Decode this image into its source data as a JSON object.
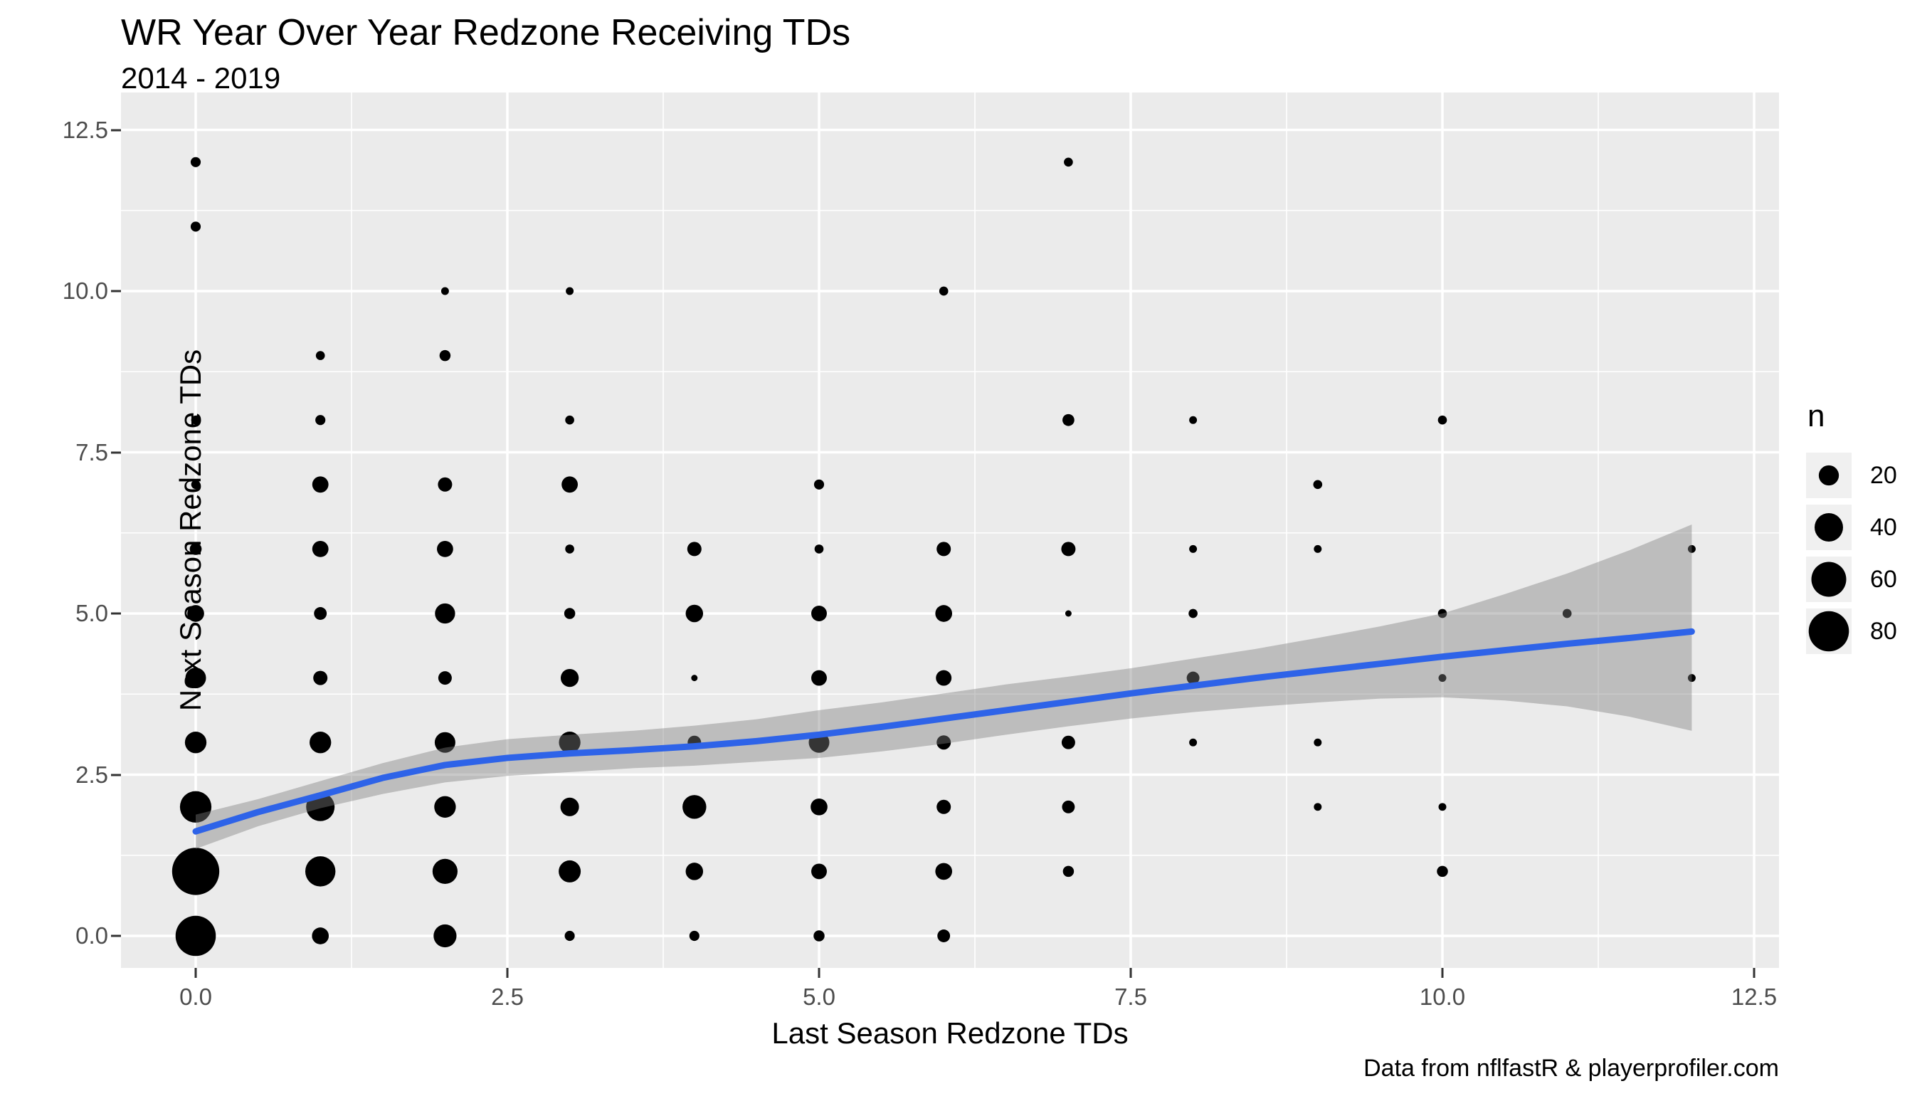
{
  "title": "WR Year Over Year Redzone Receiving TDs",
  "subtitle": "2014 - 2019",
  "caption": "Data from nflfastR & playerprofiler.com",
  "chart_data": {
    "type": "scatter",
    "subtype": "bubble-with-loess-smooth",
    "title": "WR Year Over Year Redzone Receiving TDs",
    "xlabel": "Last Season Redzone TDs",
    "ylabel": "Next Season Redzone TDs",
    "xlim": [
      -0.6,
      13.1
    ],
    "ylim": [
      -0.6,
      13.1
    ],
    "x_tick_values": [
      0,
      2.5,
      5,
      7.5,
      10,
      12.5
    ],
    "x_tick_labels": [
      "0.0",
      "2.5",
      "5.0",
      "7.5",
      "10.0",
      "12.5"
    ],
    "y_tick_values": [
      0,
      2.5,
      5,
      7.5,
      10,
      12.5
    ],
    "y_tick_labels": [
      "0.0",
      "2.5",
      "5.0",
      "7.5",
      "10.0",
      "12.5"
    ],
    "minor_tick_values": [
      1.25,
      3.75,
      6.25,
      8.75,
      11.25
    ],
    "grid": "on",
    "legend": {
      "title": "n",
      "position": "right",
      "sizes": [
        20,
        40,
        60,
        80
      ],
      "size_labels": [
        "20",
        "40",
        "60",
        "80"
      ]
    },
    "size_scale_note": "bubble area proportional to n; radius_px = sqrt(10*n)",
    "points_format": [
      "last_season_tds",
      "next_season_tds",
      "n"
    ],
    "points": [
      [
        0,
        0,
        80
      ],
      [
        0,
        1,
        110
      ],
      [
        0,
        2,
        49
      ],
      [
        0,
        3,
        23
      ],
      [
        0,
        4,
        21
      ],
      [
        0,
        5,
        14
      ],
      [
        0,
        6,
        7
      ],
      [
        0,
        7,
        4
      ],
      [
        0,
        8,
        4
      ],
      [
        0,
        11,
        5
      ],
      [
        0,
        12,
        5
      ],
      [
        1,
        0,
        14
      ],
      [
        1,
        1,
        45
      ],
      [
        1,
        2,
        40
      ],
      [
        1,
        3,
        23
      ],
      [
        1,
        4,
        10
      ],
      [
        1,
        5,
        8
      ],
      [
        1,
        6,
        13
      ],
      [
        1,
        7,
        13
      ],
      [
        1,
        8,
        5
      ],
      [
        1,
        9,
        4
      ],
      [
        2,
        0,
        26
      ],
      [
        2,
        1,
        31
      ],
      [
        2,
        2,
        23
      ],
      [
        2,
        3,
        21
      ],
      [
        2,
        4,
        9
      ],
      [
        2,
        5,
        20
      ],
      [
        2,
        6,
        13
      ],
      [
        2,
        7,
        10
      ],
      [
        2,
        9,
        6
      ],
      [
        2,
        10,
        3
      ],
      [
        3,
        0,
        5
      ],
      [
        3,
        1,
        24
      ],
      [
        3,
        2,
        17
      ],
      [
        3,
        3,
        23
      ],
      [
        3,
        4,
        16
      ],
      [
        3,
        5,
        6
      ],
      [
        3,
        6,
        4
      ],
      [
        3,
        7,
        13
      ],
      [
        3,
        8,
        4
      ],
      [
        3,
        10,
        3
      ],
      [
        4,
        0,
        5
      ],
      [
        4,
        1,
        15
      ],
      [
        4,
        2,
        28
      ],
      [
        4,
        3,
        9
      ],
      [
        4,
        4,
        2
      ],
      [
        4,
        5,
        15
      ],
      [
        4,
        6,
        10
      ],
      [
        5,
        0,
        6
      ],
      [
        5,
        1,
        12
      ],
      [
        5,
        2,
        14
      ],
      [
        5,
        3,
        21
      ],
      [
        5,
        4,
        12
      ],
      [
        5,
        5,
        12
      ],
      [
        5,
        6,
        4
      ],
      [
        5,
        7,
        5
      ],
      [
        6,
        0,
        8
      ],
      [
        6,
        1,
        14
      ],
      [
        6,
        2,
        10
      ],
      [
        6,
        3,
        10
      ],
      [
        6,
        4,
        12
      ],
      [
        6,
        5,
        14
      ],
      [
        6,
        6,
        10
      ],
      [
        6,
        10,
        4
      ],
      [
        7,
        1,
        6
      ],
      [
        7,
        2,
        8
      ],
      [
        7,
        3,
        9
      ],
      [
        7,
        5,
        2
      ],
      [
        7,
        6,
        10
      ],
      [
        7,
        8,
        7
      ],
      [
        7,
        12,
        4
      ],
      [
        8,
        3,
        3
      ],
      [
        8,
        4,
        8
      ],
      [
        8,
        5,
        4
      ],
      [
        8,
        6,
        3
      ],
      [
        8,
        8,
        3
      ],
      [
        9,
        2,
        3
      ],
      [
        9,
        3,
        3
      ],
      [
        9,
        6,
        3
      ],
      [
        9,
        7,
        4
      ],
      [
        10,
        1,
        6
      ],
      [
        10,
        2,
        3
      ],
      [
        10,
        4,
        3
      ],
      [
        10,
        5,
        4
      ],
      [
        10,
        8,
        4
      ],
      [
        11,
        5,
        4
      ],
      [
        12,
        4,
        3
      ],
      [
        12,
        6,
        3
      ]
    ],
    "smooth_line": [
      [
        0,
        1.62
      ],
      [
        0.5,
        1.92
      ],
      [
        1,
        2.18
      ],
      [
        1.5,
        2.45
      ],
      [
        2,
        2.65
      ],
      [
        2.5,
        2.76
      ],
      [
        3,
        2.83
      ],
      [
        3.5,
        2.88
      ],
      [
        4,
        2.94
      ],
      [
        4.5,
        3.02
      ],
      [
        5,
        3.12
      ],
      [
        5.5,
        3.24
      ],
      [
        6,
        3.37
      ],
      [
        6.5,
        3.5
      ],
      [
        7,
        3.63
      ],
      [
        7.5,
        3.76
      ],
      [
        8,
        3.88
      ],
      [
        8.5,
        4.0
      ],
      [
        9,
        4.11
      ],
      [
        9.5,
        4.22
      ],
      [
        10,
        4.33
      ],
      [
        10.5,
        4.43
      ],
      [
        11,
        4.53
      ],
      [
        11.5,
        4.62
      ],
      [
        12,
        4.72
      ]
    ],
    "ribbon_upper": [
      [
        0,
        1.88
      ],
      [
        0.5,
        2.12
      ],
      [
        1,
        2.4
      ],
      [
        1.5,
        2.68
      ],
      [
        2,
        2.92
      ],
      [
        2.5,
        3.05
      ],
      [
        3,
        3.12
      ],
      [
        3.5,
        3.18
      ],
      [
        4,
        3.26
      ],
      [
        4.5,
        3.36
      ],
      [
        5,
        3.5
      ],
      [
        5.5,
        3.62
      ],
      [
        6,
        3.76
      ],
      [
        6.5,
        3.9
      ],
      [
        7,
        4.02
      ],
      [
        7.5,
        4.15
      ],
      [
        8,
        4.3
      ],
      [
        8.5,
        4.45
      ],
      [
        9,
        4.62
      ],
      [
        9.5,
        4.8
      ],
      [
        10,
        5.0
      ],
      [
        10.5,
        5.3
      ],
      [
        11,
        5.62
      ],
      [
        11.5,
        5.98
      ],
      [
        12,
        6.38
      ]
    ],
    "ribbon_lower": [
      [
        0,
        1.35
      ],
      [
        0.5,
        1.7
      ],
      [
        1,
        1.98
      ],
      [
        1.5,
        2.2
      ],
      [
        2,
        2.38
      ],
      [
        2.5,
        2.48
      ],
      [
        3,
        2.54
      ],
      [
        3.5,
        2.6
      ],
      [
        4,
        2.64
      ],
      [
        4.5,
        2.7
      ],
      [
        5,
        2.76
      ],
      [
        5.5,
        2.86
      ],
      [
        6,
        2.98
      ],
      [
        6.5,
        3.12
      ],
      [
        7,
        3.25
      ],
      [
        7.5,
        3.37
      ],
      [
        8,
        3.47
      ],
      [
        8.5,
        3.55
      ],
      [
        9,
        3.62
      ],
      [
        9.5,
        3.68
      ],
      [
        10,
        3.7
      ],
      [
        10.5,
        3.65
      ],
      [
        11,
        3.56
      ],
      [
        11.5,
        3.4
      ],
      [
        12,
        3.18
      ]
    ],
    "colors": {
      "panel_background": "#EBEBEB",
      "grid_major": "#FFFFFF",
      "grid_minor": "#FFFFFF",
      "point": "#000000",
      "smooth_line": "#2E63E8",
      "ribbon": "rgba(127,127,127,0.42)",
      "tick_text": "#4d4d4d",
      "tick_mark": "#333333",
      "legend_key_background": "#F0F0F0"
    }
  }
}
